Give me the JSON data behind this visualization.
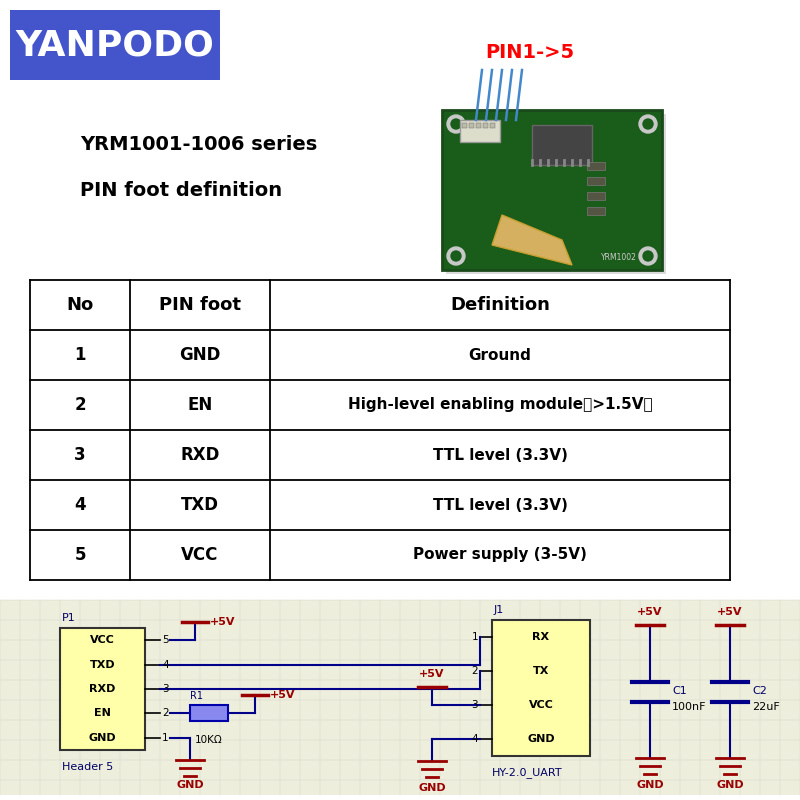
{
  "background_color": "#ffffff",
  "logo_text": "YANPODO",
  "logo_bg": "#4455cc",
  "logo_text_color": "#ffffff",
  "pin_label": "PIN1->5",
  "pin_label_color": "#ff0000",
  "subtitle1": "YRM1001-1006 series",
  "subtitle2": "PIN foot definition",
  "table_headers": [
    "No",
    "PIN foot",
    "Definition"
  ],
  "table_rows": [
    [
      "1",
      "GND",
      "Ground"
    ],
    [
      "2",
      "EN",
      "High-level enabling module（>1.5V）"
    ],
    [
      "3",
      "RXD",
      "TTL level (3.3V)"
    ],
    [
      "4",
      "TXD",
      "TTL level (3.3V)"
    ],
    [
      "5",
      "VCC",
      "Power supply (3-5V)"
    ]
  ],
  "wire_color": "#000088",
  "gnd_color": "#990000",
  "plus5_color": "#990000",
  "label_color": "#000066",
  "pcb_green": "#1a5c1a",
  "pcb_green2": "#236b23"
}
